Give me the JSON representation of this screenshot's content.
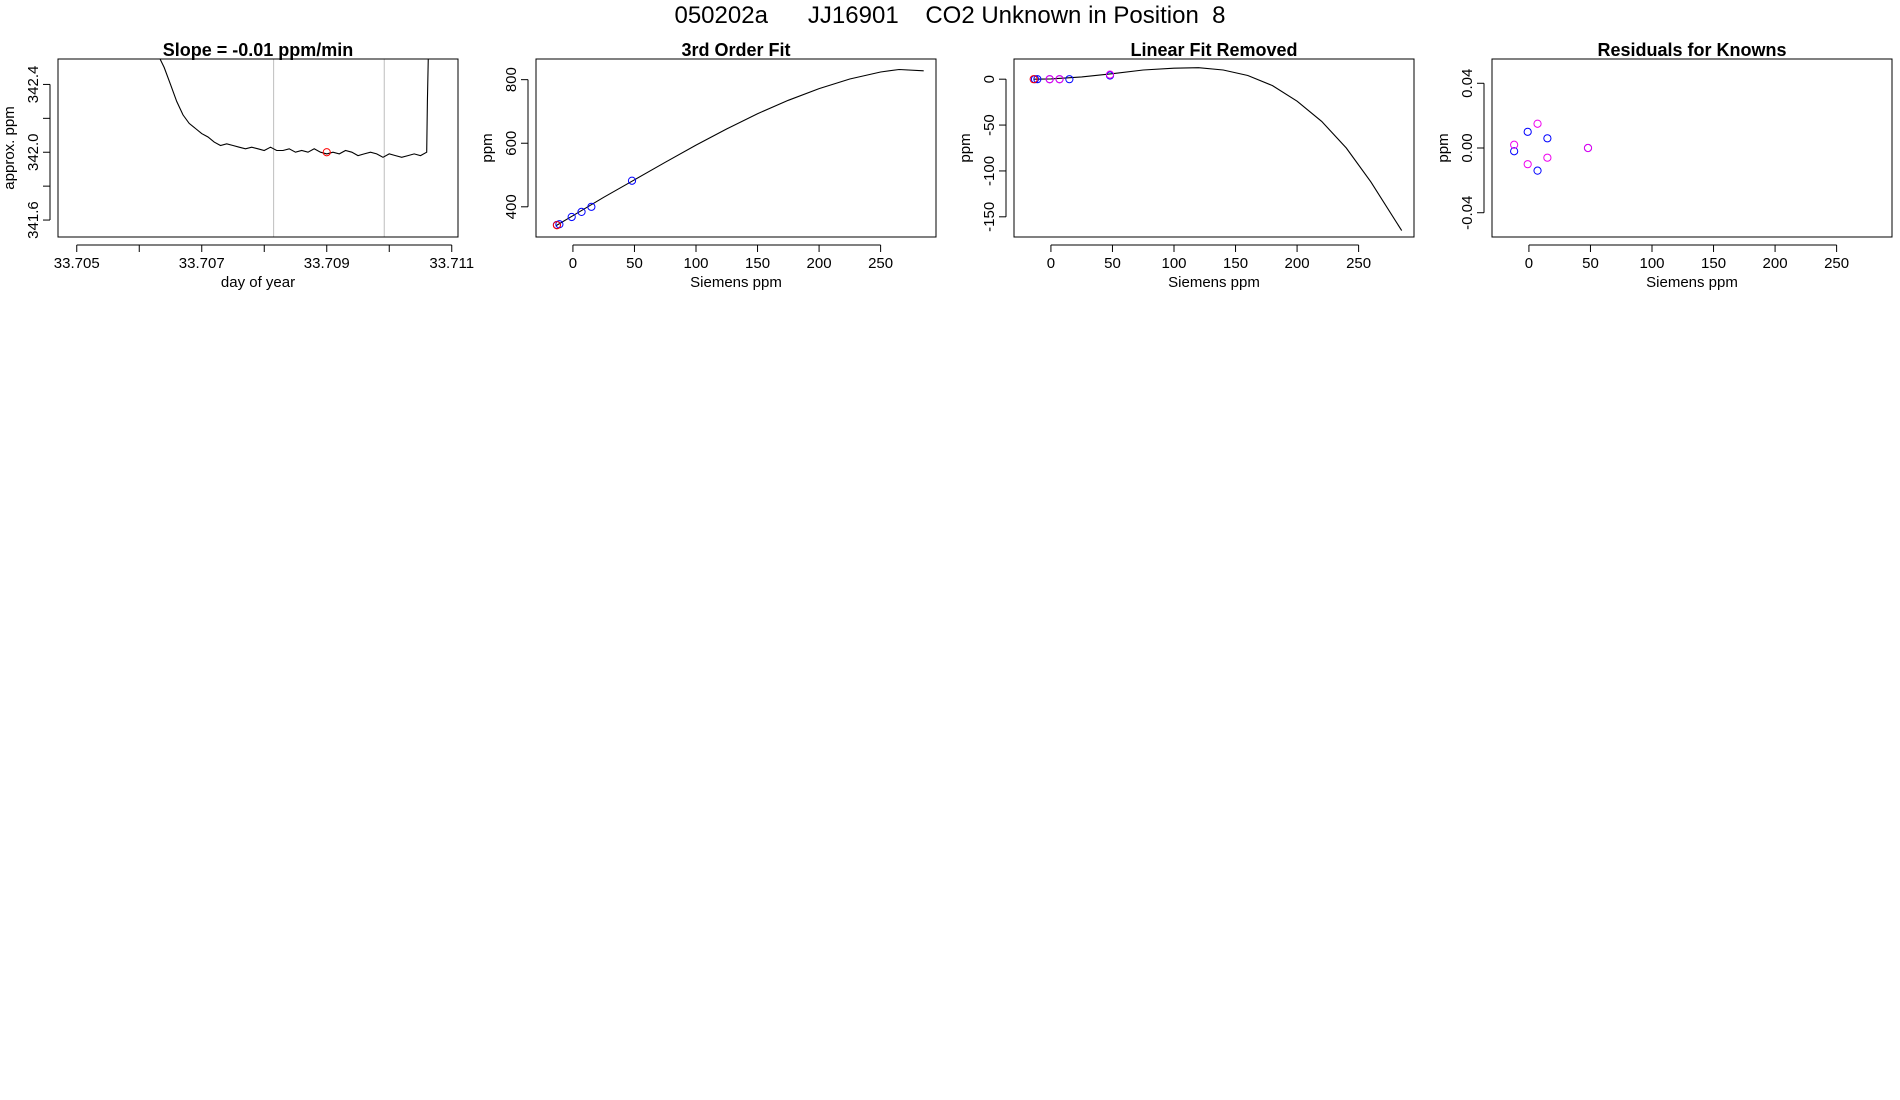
{
  "page_title": "050202a      JJ16901    CO2 Unknown in Position  8",
  "colors": {
    "curve": "#000000",
    "reference_line": "#bebebe",
    "known_points": "#0000ff",
    "unknown_point": "#ff0000",
    "residual_alt": "#ee00ee"
  },
  "chart_data": [
    {
      "type": "line",
      "title": "Slope =  -0.01  ppm/min",
      "xlabel": "day of year",
      "ylabel": "approx. ppm",
      "xlim": [
        33.7047,
        33.7111
      ],
      "ylim": [
        341.5,
        342.55
      ],
      "x_ticks": [
        "33.705",
        "33.706",
        "33.707",
        "33.708",
        "33.709",
        "33.710",
        "33.711"
      ],
      "x_tick_labels": [
        "33.705",
        "",
        "33.707",
        "",
        "33.709",
        "",
        "33.711"
      ],
      "y_ticks": [
        "341.6",
        "341.8",
        "342.0",
        "342.2",
        "342.4"
      ],
      "y_tick_labels": [
        "341.6",
        "",
        "342.0",
        "",
        "342.4"
      ],
      "reference_lines_x": [
        33.70815,
        33.70992
      ],
      "series": [
        {
          "values": [
            [
              33.7062,
              342.65
            ],
            [
              33.7064,
              342.5
            ],
            [
              33.7065,
              342.4
            ],
            [
              33.7066,
              342.3
            ],
            [
              33.7067,
              342.22
            ],
            [
              33.7068,
              342.17
            ],
            [
              33.7069,
              342.14
            ],
            [
              33.707,
              342.11
            ],
            [
              33.7071,
              342.09
            ],
            [
              33.7072,
              342.06
            ],
            [
              33.7073,
              342.04
            ],
            [
              33.7074,
              342.05
            ],
            [
              33.7075,
              342.04
            ],
            [
              33.7076,
              342.03
            ],
            [
              33.7077,
              342.02
            ],
            [
              33.7078,
              342.03
            ],
            [
              33.7079,
              342.02
            ],
            [
              33.708,
              342.01
            ],
            [
              33.7081,
              342.03
            ],
            [
              33.7082,
              342.01
            ],
            [
              33.7083,
              342.01
            ],
            [
              33.7084,
              342.02
            ],
            [
              33.7085,
              342.0
            ],
            [
              33.7086,
              342.01
            ],
            [
              33.7087,
              342.0
            ],
            [
              33.7088,
              342.02
            ],
            [
              33.7089,
              342.0
            ],
            [
              33.709,
              341.99
            ],
            [
              33.7091,
              342.0
            ],
            [
              33.7092,
              341.99
            ],
            [
              33.7093,
              342.01
            ],
            [
              33.7094,
              342.0
            ],
            [
              33.7095,
              341.98
            ],
            [
              33.7096,
              341.99
            ],
            [
              33.7097,
              342.0
            ],
            [
              33.7098,
              341.99
            ],
            [
              33.7099,
              341.97
            ],
            [
              33.71,
              341.99
            ],
            [
              33.7101,
              341.98
            ],
            [
              33.7102,
              341.97
            ],
            [
              33.7103,
              341.98
            ],
            [
              33.7104,
              341.99
            ],
            [
              33.7105,
              341.98
            ],
            [
              33.7106,
              342.0
            ],
            [
              33.71061,
              342.3
            ],
            [
              33.71063,
              342.65
            ]
          ]
        }
      ],
      "points": [
        {
          "x": 33.709,
          "y": 342.0,
          "color": "#ff0000"
        }
      ]
    },
    {
      "type": "scatter",
      "title": "3rd Order Fit",
      "xlabel": "Siemens ppm",
      "ylabel": "ppm",
      "xlim": [
        -30,
        295
      ],
      "ylim": [
        305,
        865
      ],
      "x_ticks": [
        "0",
        "50",
        "100",
        "150",
        "200",
        "250"
      ],
      "y_ticks": [
        "400",
        "600",
        "800"
      ],
      "fit_curve": [
        [
          -14,
          340
        ],
        [
          0,
          372
        ],
        [
          25,
          430
        ],
        [
          50,
          485
        ],
        [
          75,
          540
        ],
        [
          100,
          594
        ],
        [
          125,
          645
        ],
        [
          150,
          693
        ],
        [
          175,
          735
        ],
        [
          200,
          772
        ],
        [
          225,
          802
        ],
        [
          250,
          824
        ],
        [
          265,
          832
        ],
        [
          285,
          828
        ]
      ],
      "points": [
        {
          "x": -13,
          "y": 343,
          "color": "#0000ff"
        },
        {
          "x": -11,
          "y": 345,
          "color": "#0000ff"
        },
        {
          "x": -1,
          "y": 368,
          "color": "#0000ff"
        },
        {
          "x": 7,
          "y": 384,
          "color": "#0000ff"
        },
        {
          "x": 15,
          "y": 400,
          "color": "#0000ff"
        },
        {
          "x": 48,
          "y": 482,
          "color": "#0000ff"
        },
        {
          "x": -13,
          "y": 342,
          "color": "#ff0000"
        }
      ]
    },
    {
      "type": "scatter",
      "title": "Linear Fit Removed",
      "xlabel": "Siemens ppm",
      "ylabel": "ppm",
      "xlim": [
        -30,
        295
      ],
      "ylim": [
        -172,
        22
      ],
      "x_ticks": [
        "0",
        "50",
        "100",
        "150",
        "200",
        "250"
      ],
      "y_ticks": [
        "-150",
        "-100",
        "-50",
        "0"
      ],
      "fit_curve": [
        [
          -14,
          0
        ],
        [
          0,
          0.3
        ],
        [
          25,
          2.5
        ],
        [
          50,
          6
        ],
        [
          75,
          10
        ],
        [
          100,
          12
        ],
        [
          120,
          12.5
        ],
        [
          140,
          10
        ],
        [
          160,
          4
        ],
        [
          180,
          -7
        ],
        [
          200,
          -24
        ],
        [
          220,
          -46
        ],
        [
          240,
          -75
        ],
        [
          260,
          -112
        ],
        [
          285,
          -165
        ]
      ],
      "points": [
        {
          "x": -13,
          "y": 0,
          "color": "#0000ff"
        },
        {
          "x": -11,
          "y": 0,
          "color": "#0000ff"
        },
        {
          "x": -1,
          "y": 0,
          "color": "#0000ff"
        },
        {
          "x": 7,
          "y": 0,
          "color": "#0000ff"
        },
        {
          "x": 15,
          "y": 0,
          "color": "#0000ff"
        },
        {
          "x": 48,
          "y": 4,
          "color": "#0000ff"
        },
        {
          "x": -14,
          "y": 0,
          "color": "#ff0000"
        },
        {
          "x": -1,
          "y": 0,
          "color": "#ee00ee"
        },
        {
          "x": 7,
          "y": 0,
          "color": "#ee00ee"
        },
        {
          "x": 48,
          "y": 5,
          "color": "#ee00ee"
        }
      ]
    },
    {
      "type": "scatter",
      "title": "Residuals for Knowns",
      "xlabel": "Siemens ppm",
      "ylabel": "ppm",
      "xlim": [
        -30,
        295
      ],
      "ylim": [
        -0.055,
        0.055
      ],
      "x_ticks": [
        "0",
        "50",
        "100",
        "150",
        "200",
        "250"
      ],
      "y_ticks": [
        "-0.04",
        "0.00",
        "0.04"
      ],
      "points": [
        {
          "x": -12,
          "y": -0.002,
          "color": "#0000ff"
        },
        {
          "x": -1,
          "y": 0.01,
          "color": "#0000ff"
        },
        {
          "x": 7,
          "y": -0.014,
          "color": "#0000ff"
        },
        {
          "x": 15,
          "y": 0.006,
          "color": "#0000ff"
        },
        {
          "x": 48,
          "y": 0.0,
          "color": "#0000ff"
        },
        {
          "x": -12,
          "y": 0.002,
          "color": "#ee00ee"
        },
        {
          "x": -1,
          "y": -0.01,
          "color": "#ee00ee"
        },
        {
          "x": 7,
          "y": 0.015,
          "color": "#ee00ee"
        },
        {
          "x": 15,
          "y": -0.006,
          "color": "#ee00ee"
        },
        {
          "x": 48,
          "y": 0.0,
          "color": "#ee00ee"
        }
      ]
    }
  ]
}
